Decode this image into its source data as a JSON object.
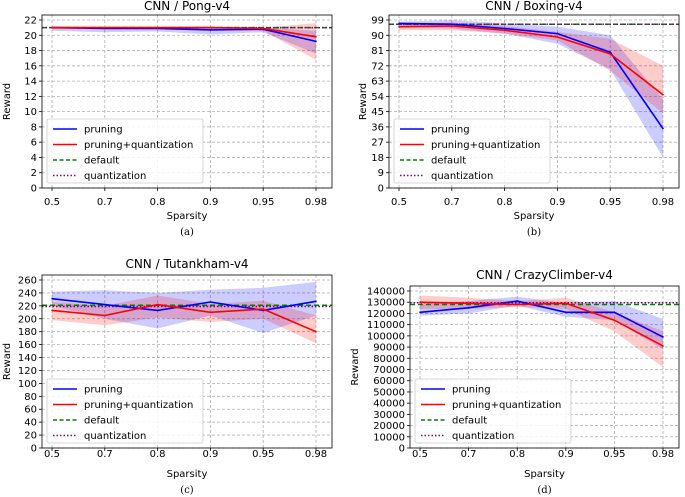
{
  "chart_data": [
    {
      "type": "line",
      "title": "CNN / Pong-v4",
      "caption": "(a)",
      "xlabel": "Sparsity",
      "ylabel": "Reward",
      "categories": [
        "0.5",
        "0.7",
        "0.8",
        "0.9",
        "0.95",
        "0.98"
      ],
      "ylim": [
        0,
        22
      ],
      "yticks": [
        0,
        2,
        4,
        6,
        8,
        10,
        12,
        14,
        16,
        18,
        20,
        22
      ],
      "default_value": 21,
      "quantization_value": 21,
      "series": [
        {
          "name": "pruning",
          "color": "#0000ff",
          "values": [
            21,
            20.9,
            20.9,
            20.7,
            20.8,
            19.2
          ],
          "lower": [
            20.6,
            20.4,
            20.5,
            20.1,
            20.4,
            17.6
          ],
          "upper": [
            21,
            21,
            21,
            21,
            21,
            20.6
          ]
        },
        {
          "name": "pruning+quantization",
          "color": "#ff0000",
          "values": [
            21,
            21,
            21,
            21,
            20.9,
            19.8
          ],
          "lower": [
            20.8,
            20.8,
            20.8,
            20.7,
            20.6,
            16.8
          ],
          "upper": [
            21,
            21,
            21,
            21,
            21,
            21.6
          ]
        }
      ],
      "legend": [
        "pruning",
        "pruning+quantization",
        "default",
        "quantization"
      ],
      "legend_position": "lower-left"
    },
    {
      "type": "line",
      "title": "CNN / Boxing-v4",
      "caption": "(b)",
      "xlabel": "Sparsity",
      "ylabel": "Reward",
      "categories": [
        "0.5",
        "0.7",
        "0.8",
        "0.9",
        "0.95",
        "0.98"
      ],
      "ylim": [
        0,
        99
      ],
      "yticks": [
        0,
        9,
        18,
        27,
        36,
        45,
        54,
        63,
        72,
        81,
        90,
        99
      ],
      "default_value": 96.5,
      "quantization_value": 96.5,
      "series": [
        {
          "name": "pruning",
          "color": "#0000ff",
          "values": [
            97,
            96.5,
            94,
            91,
            80,
            35
          ],
          "lower": [
            95,
            94,
            91,
            85,
            70,
            18
          ],
          "upper": [
            98,
            99,
            97,
            95,
            90,
            52
          ]
        },
        {
          "name": "pruning+quantization",
          "color": "#ff0000",
          "values": [
            95,
            95.5,
            93,
            89,
            79,
            55
          ],
          "lower": [
            93,
            93,
            91,
            87,
            69,
            44
          ],
          "upper": [
            96.5,
            97.5,
            95.5,
            92,
            88,
            72
          ]
        }
      ],
      "legend": [
        "pruning",
        "pruning+quantization",
        "default",
        "quantization"
      ],
      "legend_position": "lower-left"
    },
    {
      "type": "line",
      "title": "CNN / Tutankham-v4",
      "caption": "(c)",
      "xlabel": "Sparsity",
      "ylabel": "Reward",
      "categories": [
        "0.5",
        "0.7",
        "0.8",
        "0.9",
        "0.95",
        "0.98"
      ],
      "ylim": [
        0,
        260
      ],
      "yticks": [
        0,
        20,
        40,
        60,
        80,
        100,
        120,
        140,
        160,
        180,
        200,
        220,
        240,
        260
      ],
      "default_value": 221,
      "quantization_value": 219,
      "series": [
        {
          "name": "pruning",
          "color": "#0000ff",
          "values": [
            231,
            222,
            213,
            226,
            213,
            227
          ],
          "lower": [
            220,
            200,
            185,
            205,
            178,
            205
          ],
          "upper": [
            242,
            244,
            240,
            245,
            248,
            257
          ]
        },
        {
          "name": "pruning+quantization",
          "color": "#ff0000",
          "values": [
            213,
            205,
            222,
            210,
            215,
            180
          ],
          "lower": [
            198,
            190,
            202,
            195,
            200,
            162
          ],
          "upper": [
            226,
            220,
            236,
            223,
            228,
            205
          ]
        }
      ],
      "legend": [
        "pruning",
        "pruning+quantization",
        "default",
        "quantization"
      ],
      "legend_position": "lower-left"
    },
    {
      "type": "line",
      "title": "CNN / CrazyClimber-v4",
      "caption": "(d)",
      "xlabel": "Sparsity",
      "ylabel": "Reward",
      "categories": [
        "0.5",
        "0.7",
        "0.8",
        "0.9",
        "0.95",
        "0.98"
      ],
      "ylim": [
        0,
        140000
      ],
      "yticks": [
        0,
        10000,
        20000,
        30000,
        40000,
        50000,
        60000,
        70000,
        80000,
        90000,
        100000,
        110000,
        120000,
        130000,
        140000
      ],
      "default_value": 128000,
      "quantization_value": 129500,
      "series": [
        {
          "name": "pruning",
          "color": "#0000ff",
          "values": [
            121000,
            125000,
            131000,
            121000,
            121000,
            99000
          ],
          "lower": [
            118000,
            120000,
            127000,
            117000,
            114000,
            88000
          ],
          "upper": [
            128000,
            131000,
            135000,
            129000,
            131000,
            115000
          ]
        },
        {
          "name": "pruning+quantization",
          "color": "#ff0000",
          "values": [
            130000,
            129000,
            128000,
            129000,
            114000,
            91000
          ],
          "lower": [
            124000,
            124000,
            126000,
            124000,
            104000,
            72000
          ],
          "upper": [
            136000,
            134000,
            131000,
            134000,
            121000,
            104000
          ]
        }
      ],
      "legend": [
        "pruning",
        "pruning+quantization",
        "default",
        "quantization"
      ],
      "legend_position": "lower-left"
    }
  ]
}
